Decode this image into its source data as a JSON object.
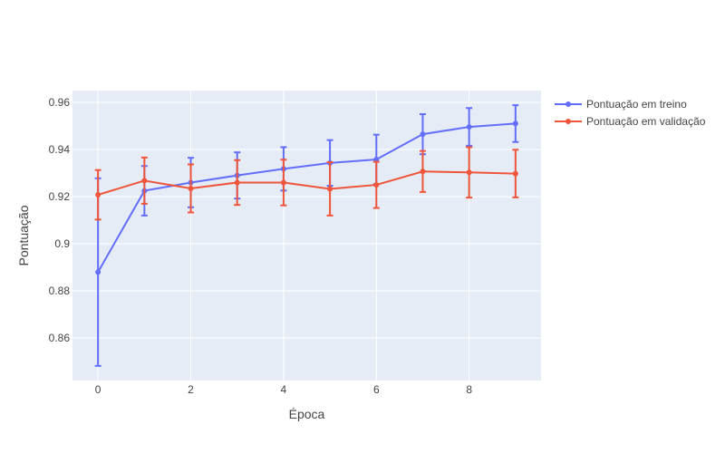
{
  "chart_data": {
    "type": "line",
    "xlabel": "Época",
    "ylabel": "Pontuação",
    "xlim": [
      -0.55,
      9.55
    ],
    "ylim": [
      0.842,
      0.965
    ],
    "x_ticks": [
      0,
      2,
      4,
      6,
      8
    ],
    "x_tick_labels": [
      "0",
      "2",
      "4",
      "6",
      "8"
    ],
    "y_ticks": [
      0.86,
      0.88,
      0.9,
      0.92,
      0.94,
      0.96
    ],
    "y_tick_labels": [
      "0.86",
      "0.88",
      "0.9",
      "0.92",
      "0.94",
      "0.96"
    ],
    "grid": true,
    "legend_position": "top-right-outside",
    "x": [
      0,
      1,
      2,
      3,
      4,
      5,
      6,
      7,
      8,
      9
    ],
    "series": [
      {
        "name": "Pontuação em treino",
        "color": "#636efa",
        "values": [
          0.888,
          0.9225,
          0.926,
          0.929,
          0.9318,
          0.9343,
          0.9358,
          0.9465,
          0.9496,
          0.951
        ],
        "error": [
          0.0398,
          0.0105,
          0.0105,
          0.0098,
          0.0092,
          0.0097,
          0.0105,
          0.0085,
          0.008,
          0.0078
        ]
      },
      {
        "name": "Pontuação em validação",
        "color": "#ef553b",
        "values": [
          0.9208,
          0.9268,
          0.9235,
          0.926,
          0.926,
          0.9233,
          0.925,
          0.9307,
          0.9303,
          0.9298
        ],
        "error": [
          0.0105,
          0.0098,
          0.0102,
          0.0095,
          0.0097,
          0.0113,
          0.0098,
          0.0087,
          0.0107,
          0.0101
        ]
      }
    ]
  }
}
